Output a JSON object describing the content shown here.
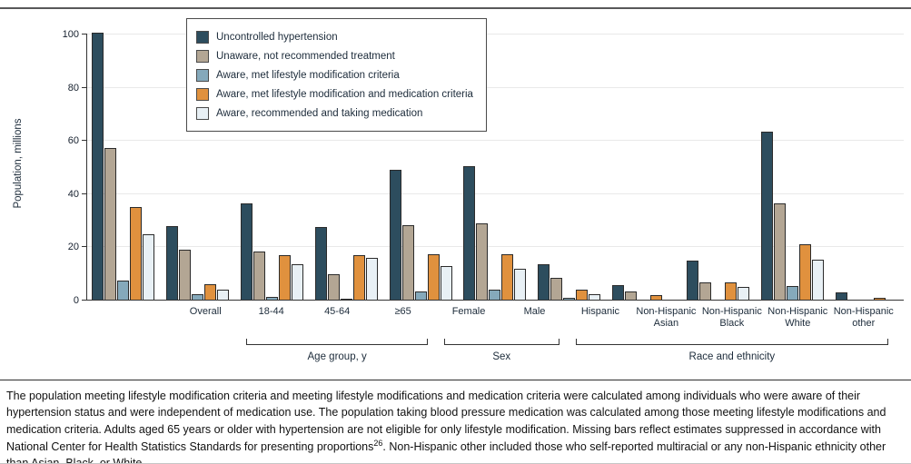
{
  "chart_data": {
    "type": "bar",
    "ylabel": "Population, millions",
    "ylim": [
      0,
      100
    ],
    "yticks": [
      0,
      20,
      40,
      60,
      80,
      100
    ],
    "grid": true,
    "legend_position": "top-left-inside",
    "categories": [
      "Overall",
      "18-44",
      "45-64",
      "≥65",
      "Female",
      "Male",
      "Hispanic",
      "Non-Hispanic Asian",
      "Non-Hispanic Black",
      "Non-Hispanic White",
      "Non-Hispanic other"
    ],
    "category_label_lines": [
      [
        "Overall"
      ],
      [
        "18-44"
      ],
      [
        "45-64"
      ],
      [
        "≥65"
      ],
      [
        "Female"
      ],
      [
        "Male"
      ],
      [
        "Hispanic"
      ],
      [
        "Non-Hispanic",
        "Asian"
      ],
      [
        "Non-Hispanic",
        "Black"
      ],
      [
        "Non-Hispanic",
        "White"
      ],
      [
        "Non-Hispanic",
        "other"
      ]
    ],
    "sections": [
      {
        "label": "Age group, y",
        "start": 1,
        "end": 3
      },
      {
        "label": "Sex",
        "start": 4,
        "end": 5
      },
      {
        "label": "Race and ethnicity",
        "start": 6,
        "end": 10
      }
    ],
    "series": [
      {
        "name": "Uncontrolled hypertension",
        "color": "#2d4d5e",
        "values": [
          100.8,
          28,
          36.5,
          27.5,
          49,
          50.5,
          13.5,
          5.8,
          15,
          63.5,
          3
        ]
      },
      {
        "name": "Unaware, not recommended treatment",
        "color": "#b3a694",
        "values": [
          57.5,
          19,
          18.5,
          10,
          28.5,
          29,
          8.5,
          3.5,
          7,
          36.5,
          null
        ]
      },
      {
        "name": "Aware, met lifestyle modification criteria",
        "color": "#85a9bb",
        "values": [
          7.5,
          2.5,
          1.5,
          0.3,
          3.5,
          4,
          1,
          null,
          null,
          5.5,
          null
        ]
      },
      {
        "name": "Aware, met lifestyle modification and medication criteria",
        "color": "#e0913e",
        "values": [
          35,
          6,
          17,
          17,
          17.5,
          17.5,
          4,
          2,
          7,
          21,
          1
        ]
      },
      {
        "name": "Aware, recommended and taking medication",
        "color": "#e8f0f5",
        "values": [
          25,
          4,
          13.5,
          16,
          13,
          12,
          2.5,
          null,
          5,
          15.5,
          null
        ]
      }
    ]
  },
  "footnote": {
    "text_before_sup": "The population meeting lifestyle modification criteria and meeting lifestyle modifications and medication criteria were calculated among individuals who were aware of their hypertension status and were independent of medication use. The population taking blood pressure medication was calculated among those meeting lifestyle modifications and medication criteria. Adults aged 65 years or older with hypertension are not eligible for only lifestyle modification. Missing bars reflect estimates suppressed in accordance with National Center for Health Statistics Standards for presenting proportions",
    "superscript": "26",
    "text_after_sup": ". Non-Hispanic other included those who self-reported multiracial or any non-Hispanic ethnicity other than Asian, Black, or White."
  }
}
